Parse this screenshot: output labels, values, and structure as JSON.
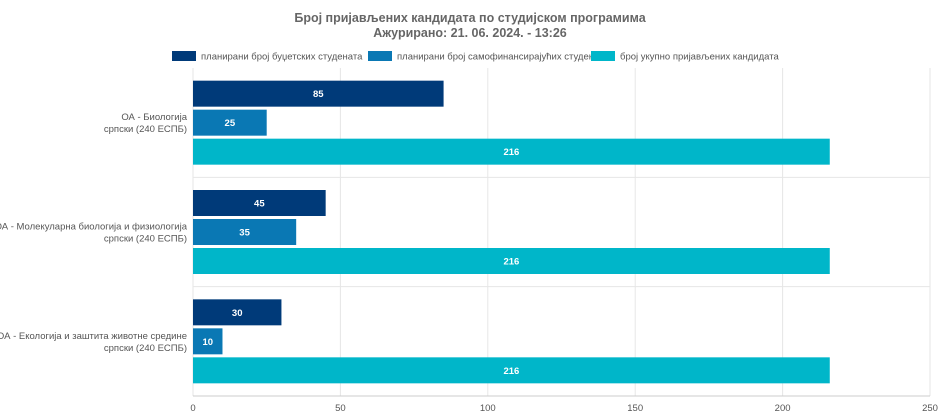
{
  "chart_data": {
    "type": "bar",
    "orientation": "horizontal",
    "title": "Број пријављених кандидата по студијском програмима",
    "subtitle": "Ажурирано: 21. 06. 2024. - 13:26",
    "categories": [
      [
        "ОА - Биологија",
        "српски (240 ЕСПБ)"
      ],
      [
        "ОА - Молекуларна биологија и физиологија",
        "српски (240 ЕСПБ)"
      ],
      [
        "ОА - Екологија и заштита животне средине",
        "српски (240 ЕСПБ)"
      ]
    ],
    "series": [
      {
        "name": "планирани број буџетских студената",
        "color": "#003a79",
        "values": [
          85,
          45,
          30
        ]
      },
      {
        "name": "планирани број самофинансирајућих студената",
        "color": "#0a78b4",
        "values": [
          25,
          35,
          10
        ]
      },
      {
        "name": "број укупно пријављених кандидата",
        "color": "#00b6c9",
        "values": [
          216,
          216,
          216
        ]
      }
    ],
    "xlim": [
      0,
      250
    ],
    "xticks": [
      0,
      50,
      100,
      150,
      200,
      250
    ],
    "grid": true,
    "legend_position": "top"
  }
}
